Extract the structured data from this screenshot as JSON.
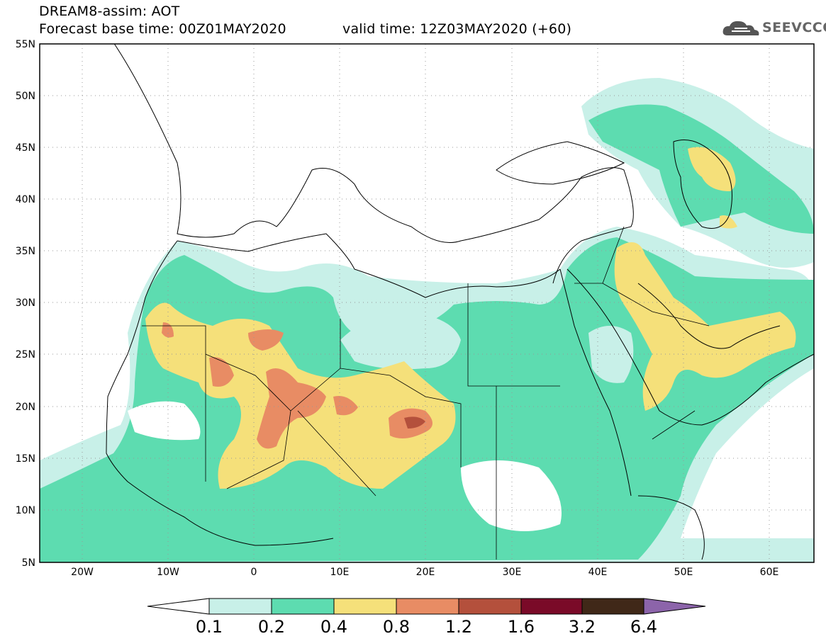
{
  "header": {
    "line1": "DREAM8-assim: AOT",
    "line2": "Forecast base time: 00Z01MAY2020",
    "line3": "valid time: 12Z03MAY2020 (+60)",
    "logo_text": "SEEVCCC",
    "logo_icon": "cloud-icon"
  },
  "map": {
    "lat_labels": [
      "55N",
      "50N",
      "45N",
      "40N",
      "35N",
      "30N",
      "25N",
      "20N",
      "15N",
      "10N",
      "5N"
    ],
    "lon_labels": [
      "20W",
      "10W",
      "0",
      "10E",
      "20E",
      "30E",
      "40E",
      "50E",
      "60E"
    ]
  },
  "colorbar": {
    "labels": [
      "0.1",
      "0.2",
      "0.4",
      "0.8",
      "1.2",
      "1.6",
      "3.2",
      "6.4"
    ],
    "colors": [
      "#c8f0e8",
      "#5ddcb0",
      "#f5e07a",
      "#e88c64",
      "#b4503c",
      "#7a0a28",
      "#402818",
      "#8c64aa"
    ]
  }
}
